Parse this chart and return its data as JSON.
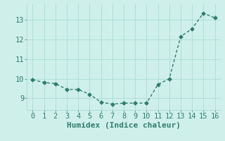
{
  "x": [
    0,
    1,
    2,
    3,
    4,
    5,
    6,
    7,
    8,
    9,
    10,
    11,
    12,
    13,
    14,
    15,
    16
  ],
  "y": [
    9.95,
    9.8,
    9.75,
    9.45,
    9.45,
    9.2,
    8.8,
    8.7,
    8.75,
    8.75,
    8.75,
    9.7,
    10.0,
    12.15,
    12.55,
    13.35,
    13.1
  ],
  "line_color": "#2e7d6e",
  "marker": "D",
  "marker_size": 2.5,
  "bg_color": "#cff0ea",
  "grid_color": "#aeddd7",
  "xlabel": "Humidex (Indice chaleur)",
  "xlabel_fontsize": 8,
  "tick_fontsize": 7.5,
  "ylim": [
    8.4,
    13.8
  ],
  "xlim": [
    -0.5,
    16.5
  ],
  "yticks": [
    9,
    10,
    11,
    12,
    13
  ],
  "xticks": [
    0,
    1,
    2,
    3,
    4,
    5,
    6,
    7,
    8,
    9,
    10,
    11,
    12,
    13,
    14,
    15,
    16
  ]
}
